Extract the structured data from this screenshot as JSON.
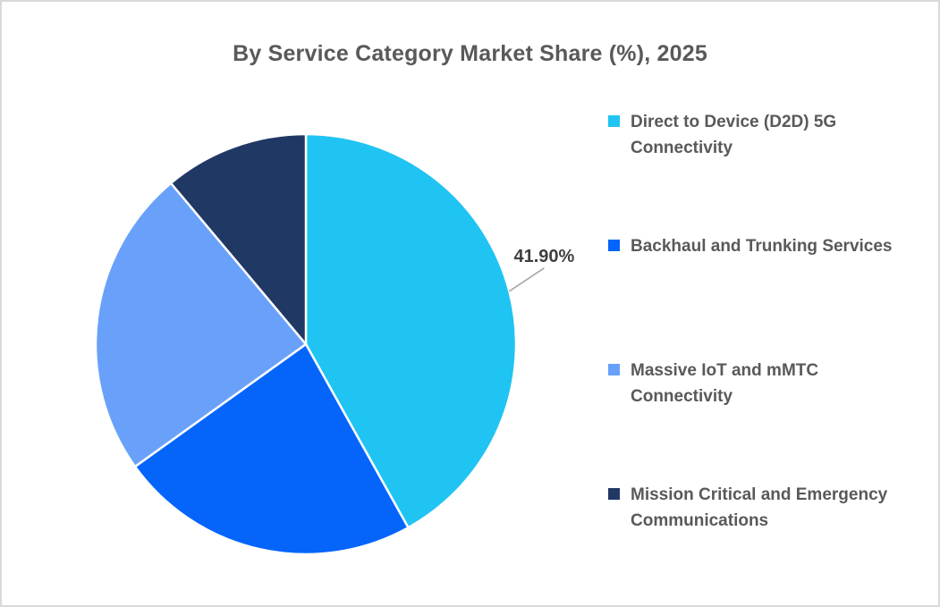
{
  "title": "By Service Category Market Share (%), 2025",
  "chart_data": {
    "type": "pie",
    "title": "By Service Category Market Share (%), 2025",
    "categories": [
      "Direct to Device (D2D) 5G Connectivity",
      "Backhaul and Trunking Services",
      "Massive IoT and mMTC Connectivity",
      "Mission Critical and Emergency Communications"
    ],
    "values": [
      41.9,
      23.2,
      23.8,
      11.1
    ],
    "unit": "%",
    "colors": [
      "#20C4F2",
      "#0565FB",
      "#69A1FA",
      "#203864"
    ],
    "start_angle_deg": 0,
    "direction": "clockwise",
    "legend_position": "right",
    "grid": false,
    "data_labels": [
      {
        "slice_index": 0,
        "text": "41.90%"
      }
    ]
  },
  "legend": {
    "items": [
      {
        "label": "Direct to Device (D2D) 5G Connectivity",
        "color": "#20C4F2"
      },
      {
        "label": "Backhaul and Trunking Services",
        "color": "#0565FB"
      },
      {
        "label": "Massive IoT and mMTC Connectivity",
        "color": "#69A1FA"
      },
      {
        "label": "Mission Critical and Emergency Communications",
        "color": "#203864"
      }
    ]
  },
  "styles": {
    "canvas_border": "#D9D9D9",
    "title_color": "#595959",
    "legend_text_color": "#595959",
    "data_label_color": "#3F3F3F",
    "leader_line_color": "#A6A6A6",
    "slice_separator": "#FFFFFF"
  }
}
